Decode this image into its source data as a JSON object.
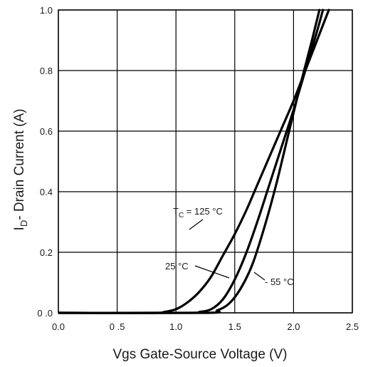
{
  "chart_data": {
    "type": "line",
    "title": "",
    "xlabel": "Vgs Gate-Source Voltage (V)",
    "ylabel_main": "I",
    "ylabel_sub": "D",
    "ylabel_rest": "- Drain Current (A)",
    "xlim": [
      0.0,
      2.5
    ],
    "ylim": [
      0.0,
      1.0
    ],
    "grid": true,
    "x_ticks": [
      "0.0",
      "0 .5",
      "1.0",
      "1.5",
      "2.0",
      "2.5"
    ],
    "y_ticks": [
      "0 .0",
      "0.2",
      "0.4",
      "0.6",
      "0.8",
      "1.0"
    ],
    "series": [
      {
        "label_main": "T",
        "label_sub": "C",
        "label_rest": " = 125 °C",
        "points": [
          [
            0.0,
            0.0
          ],
          [
            0.8,
            0.0
          ],
          [
            0.9,
            0.003
          ],
          [
            1.0,
            0.012
          ],
          [
            1.1,
            0.035
          ],
          [
            1.2,
            0.07
          ],
          [
            1.3,
            0.12
          ],
          [
            1.4,
            0.19
          ],
          [
            1.5,
            0.26
          ],
          [
            1.6,
            0.34
          ],
          [
            1.7,
            0.43
          ],
          [
            1.8,
            0.52
          ],
          [
            1.9,
            0.61
          ],
          [
            2.0,
            0.7
          ],
          [
            2.1,
            0.8
          ],
          [
            2.2,
            0.9
          ],
          [
            2.3,
            1.0
          ]
        ]
      },
      {
        "label": "25 °C",
        "points": [
          [
            0.0,
            0.0
          ],
          [
            1.1,
            0.0
          ],
          [
            1.2,
            0.003
          ],
          [
            1.3,
            0.012
          ],
          [
            1.4,
            0.045
          ],
          [
            1.5,
            0.11
          ],
          [
            1.6,
            0.2
          ],
          [
            1.7,
            0.31
          ],
          [
            1.8,
            0.43
          ],
          [
            1.9,
            0.55
          ],
          [
            2.0,
            0.67
          ],
          [
            2.1,
            0.8
          ],
          [
            2.2,
            0.93
          ],
          [
            2.25,
            1.0
          ]
        ]
      },
      {
        "label": "- 55 °C",
        "points": [
          [
            0.0,
            0.0
          ],
          [
            1.25,
            0.0
          ],
          [
            1.35,
            0.008
          ],
          [
            1.45,
            0.03
          ],
          [
            1.55,
            0.08
          ],
          [
            1.65,
            0.16
          ],
          [
            1.75,
            0.28
          ],
          [
            1.85,
            0.42
          ],
          [
            1.95,
            0.58
          ],
          [
            2.05,
            0.74
          ],
          [
            2.15,
            0.89
          ],
          [
            2.22,
            1.0
          ]
        ]
      }
    ]
  }
}
